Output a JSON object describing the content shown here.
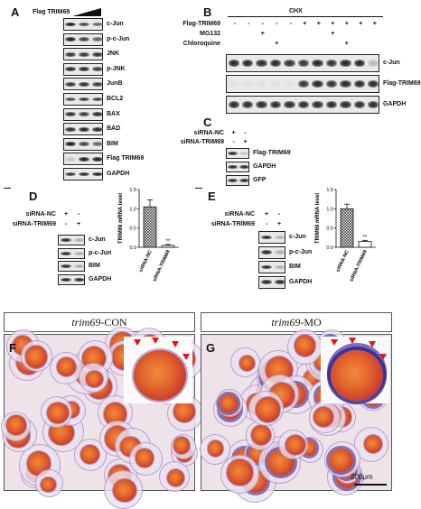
{
  "panels": {
    "A": {
      "letter": "A",
      "header": "Flag TRIM69",
      "rows": [
        "c-Jun",
        "p-c-Jun",
        "JNK",
        "p-JNK",
        "JunB",
        "BCL2",
        "BAX",
        "BAD",
        "BIM",
        "Flag TRIM69",
        "GAPDH"
      ]
    },
    "B": {
      "letter": "B",
      "treatment": "CHX",
      "conditions": [
        {
          "label": "Flag-TRIM69",
          "signs": [
            "-",
            "-",
            "-",
            "-",
            "-",
            "+",
            "+",
            "+",
            "+",
            "+",
            "+"
          ]
        },
        {
          "label": "MG132",
          "signs": [
            "",
            "",
            "+",
            "",
            "",
            "",
            "",
            "+",
            "",
            "",
            ""
          ]
        },
        {
          "label": "Chloroquine",
          "signs": [
            "",
            "",
            "",
            "+",
            "",
            "",
            "",
            "",
            "+",
            "",
            ""
          ]
        }
      ],
      "rows": [
        "c-Jun",
        "Flag-TRIM69",
        "GAPDH"
      ]
    },
    "C": {
      "letter": "C",
      "conditions": [
        {
          "label": "siRNA-NC",
          "signs": [
            "+",
            "-"
          ]
        },
        {
          "label": "siRNA-TRIM69",
          "signs": [
            "-",
            "+"
          ]
        }
      ],
      "rows": [
        "Flag-TRIM69",
        "GAPDH",
        "GFP"
      ]
    },
    "D": {
      "letter": "D",
      "conditions": [
        {
          "label": "siRNA-NC",
          "signs": [
            "+",
            "-"
          ]
        },
        {
          "label": "siRNA-TRIM69",
          "signs": [
            "-",
            "+"
          ]
        }
      ],
      "rows": [
        "c-Jun",
        "p-c-Jun",
        "BIM",
        "GAPDH"
      ]
    },
    "E": {
      "letter": "E",
      "conditions": [
        {
          "label": "siRNA-NC",
          "signs": [
            "+",
            "-"
          ]
        },
        {
          "label": "siRNA-TRIM69",
          "signs": [
            "-",
            "+"
          ]
        }
      ],
      "rows": [
        "c-Jun",
        "p-c-Jun",
        "BIM",
        "GAPDH"
      ]
    },
    "F": {
      "letter": "F",
      "title_italic": "trim69",
      "title_rest": "-CON"
    },
    "G": {
      "letter": "G",
      "title_italic": "trim69",
      "title_rest": "-MO",
      "scale_label": "200μm"
    }
  },
  "chart_data": [
    {
      "type": "bar",
      "panel": "D",
      "categories": [
        "siRNA-NC",
        "siRNA-TRIM69"
      ],
      "values": [
        1.05,
        0.05
      ],
      "errors": [
        0.18,
        0.02
      ],
      "ylabel": "TRIM69 mRNA level",
      "ylim": [
        0,
        1.5
      ],
      "yticks": [
        "0.0",
        "0.5",
        "1.0",
        "1.5"
      ],
      "annotation": "**"
    },
    {
      "type": "bar",
      "panel": "E",
      "categories": [
        "siRNA-NC",
        "siRNA-TRIM69"
      ],
      "values": [
        1.0,
        0.15
      ],
      "errors": [
        0.12,
        0.03
      ],
      "ylabel": "TRIM69 mRNA level",
      "ylim": [
        0,
        1.5
      ],
      "yticks": [
        "0.0",
        "0.5",
        "1.0",
        "1.5"
      ],
      "annotation": "**"
    }
  ]
}
